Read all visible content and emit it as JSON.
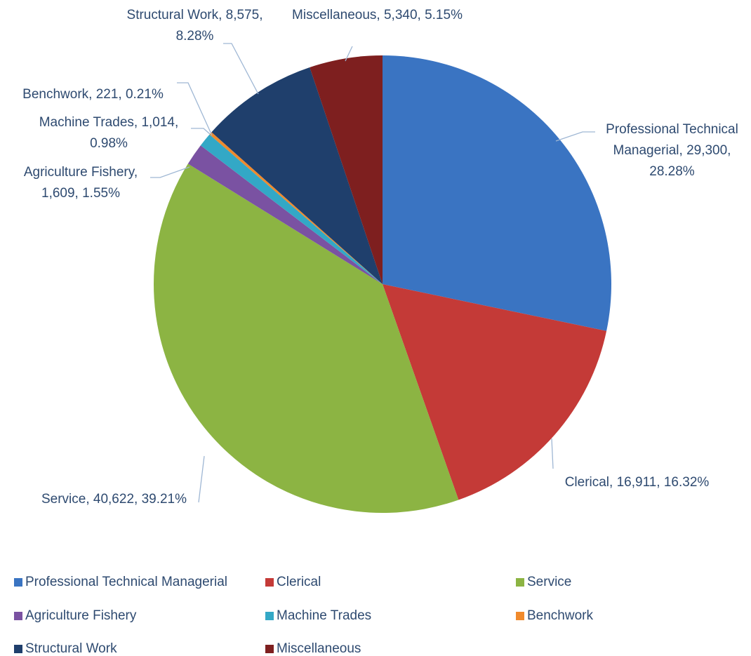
{
  "chart_data": {
    "type": "pie",
    "categories": [
      "Professional Technical Managerial",
      "Clerical",
      "Service",
      "Agriculture Fishery",
      "Machine Trades",
      "Benchwork",
      "Structural Work",
      "Miscellaneous"
    ],
    "values": [
      29300,
      16911,
      40622,
      1609,
      1014,
      221,
      8575,
      5340
    ],
    "value_labels": [
      "Professional Technical Managerial, 29,300, 28.28%",
      "Clerical, 16,911, 16.32%",
      "Service, 40,622, 39.21%",
      "Agriculture Fishery, 1,609, 1.55%",
      "Machine Trades, 1,014, 0.98%",
      "Benchwork, 221, 0.21%",
      "Structural Work, 8,575, 8.28%",
      "Miscellaneous, 5,340, 5.15%"
    ],
    "colors": [
      "#3a74c2",
      "#c43a37",
      "#8cb443",
      "#7a52a2",
      "#33a8c6",
      "#f08a2c",
      "#1f3f6c",
      "#7e1f1f"
    ],
    "legend": "bottom"
  }
}
